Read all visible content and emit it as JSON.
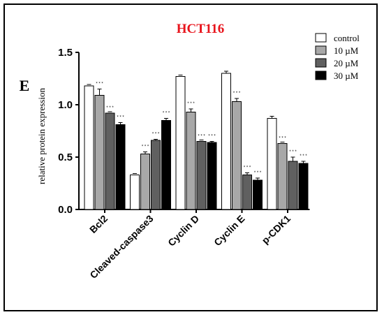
{
  "panel_label": "E",
  "chart_data": {
    "type": "bar",
    "title": "HCT116",
    "title_color": "#e8141c",
    "xlabel": "",
    "ylabel": "relative protein expression",
    "ylim": [
      0,
      1.5
    ],
    "yticks": [
      "0.0",
      "0.5",
      "1.0",
      "1.5"
    ],
    "categories": [
      "Bcl2",
      "Cleaved-caspase3",
      "Cyclin D",
      "Cyclin E",
      "p-CDK1"
    ],
    "series": [
      {
        "name": "control",
        "color": "#ffffff",
        "values": [
          1.18,
          0.33,
          1.27,
          1.3,
          0.87
        ],
        "errors": [
          0.0,
          0.0,
          0.0,
          0.02,
          0.02
        ]
      },
      {
        "name": "10 µM",
        "color": "#a8a8a8",
        "values": [
          1.09,
          0.53,
          0.93,
          1.03,
          0.63
        ],
        "errors": [
          0.06,
          0.02,
          0.03,
          0.03,
          0.0
        ]
      },
      {
        "name": "20 µM",
        "color": "#606060",
        "values": [
          0.92,
          0.66,
          0.65,
          0.33,
          0.46
        ],
        "errors": [
          0.0,
          0.01,
          0.0,
          0.02,
          0.04
        ]
      },
      {
        "name": "30 µM",
        "color": "#000000",
        "values": [
          0.81,
          0.85,
          0.64,
          0.28,
          0.44
        ],
        "errors": [
          0.02,
          0.02,
          0.01,
          0.02,
          0.02
        ]
      }
    ],
    "significance": [
      [
        "",
        "* * *",
        "* * *",
        "* * *"
      ],
      [
        "",
        "* * *",
        "* * *",
        "* * *"
      ],
      [
        "",
        "* * *",
        "* * *",
        "* * *"
      ],
      [
        "",
        "* * *",
        "* * *",
        "* * *"
      ],
      [
        "",
        "* * *",
        "* * *",
        "* * *"
      ]
    ],
    "legend_position": "top-right",
    "grid": false
  }
}
